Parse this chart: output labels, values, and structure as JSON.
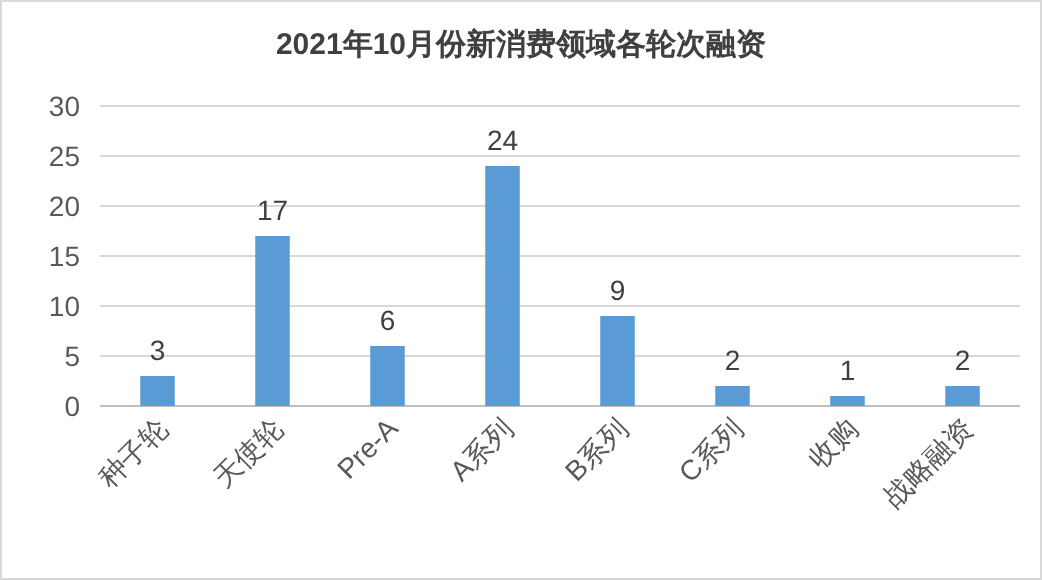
{
  "chart_data": {
    "type": "bar",
    "title": "2021年10月份新消费领域各轮次融资",
    "categories": [
      "种子轮",
      "天使轮",
      "Pre-A",
      "A系列",
      "B系列",
      "C系列",
      "收购",
      "战略融资"
    ],
    "values": [
      3,
      17,
      6,
      24,
      9,
      2,
      1,
      2
    ],
    "color": "#5b9bd5",
    "ylim": [
      0,
      30
    ],
    "yticks": [
      0,
      5,
      10,
      15,
      20,
      25,
      30
    ],
    "grid": "y",
    "data_labels": true
  }
}
